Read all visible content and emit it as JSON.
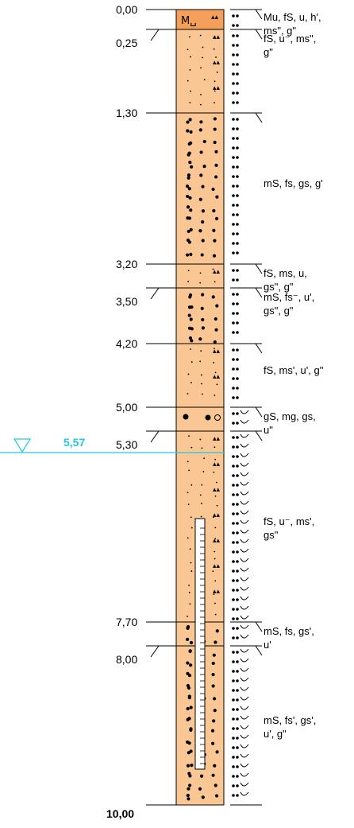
{
  "colors": {
    "soil_fill": "#f9c694",
    "topsoil_fill": "#f5a05a",
    "line": "#000000",
    "water": "#1ec8e6"
  },
  "water_level": {
    "label": "5,57",
    "depth": 5.57
  },
  "layers": [
    {
      "from": 0.0,
      "to": 0.25,
      "type": "topsoil",
      "top_label": "0,00"
    },
    {
      "from": 0.25,
      "to": 1.3,
      "type": "fS",
      "top_label": "0,25"
    },
    {
      "from": 1.3,
      "to": 3.2,
      "type": "mS",
      "top_label": "1,30"
    },
    {
      "from": 3.2,
      "to": 3.5,
      "type": "fS",
      "top_label": "3,20"
    },
    {
      "from": 3.5,
      "to": 4.2,
      "type": "mS",
      "top_label": "3,50"
    },
    {
      "from": 4.2,
      "to": 5.0,
      "type": "fS",
      "top_label": "4,20"
    },
    {
      "from": 5.0,
      "to": 5.3,
      "type": "gS",
      "top_label": "5,00"
    },
    {
      "from": 5.3,
      "to": 7.7,
      "type": "fS",
      "top_label": "5,30"
    },
    {
      "from": 7.7,
      "to": 8.0,
      "type": "mS",
      "top_label": "7,70"
    },
    {
      "from": 8.0,
      "to": 10.0,
      "type": "mS",
      "top_label": "8,00"
    }
  ],
  "end_depth_label": "10,00",
  "descriptions": [
    {
      "lines": [
        "Mu, fS, u, h',",
        "ms\", g\""
      ]
    },
    {
      "lines": [
        "fS, u⁻, ms\",",
        "g\""
      ]
    },
    {
      "lines": [
        "mS, fs, gs, g'"
      ]
    },
    {
      "lines": [
        "fS, ms, u,",
        "gs\", g\""
      ]
    },
    {
      "lines": [
        "mS, fs⁻, u',",
        "gs\", g\""
      ]
    },
    {
      "lines": [
        "fS, ms', u', g\""
      ]
    },
    {
      "lines": [
        "gS, mg, gs,",
        "u\""
      ]
    },
    {
      "lines": [
        "fS, u⁻, ms',",
        "gs\""
      ]
    },
    {
      "lines": [
        "mS, fs, gs',",
        "u'"
      ]
    },
    {
      "lines": [
        "mS, fs', gs',",
        "u', g\""
      ]
    }
  ],
  "topsoil_symbol": "M␣",
  "well": {
    "from": 6.4,
    "to": 9.55
  }
}
